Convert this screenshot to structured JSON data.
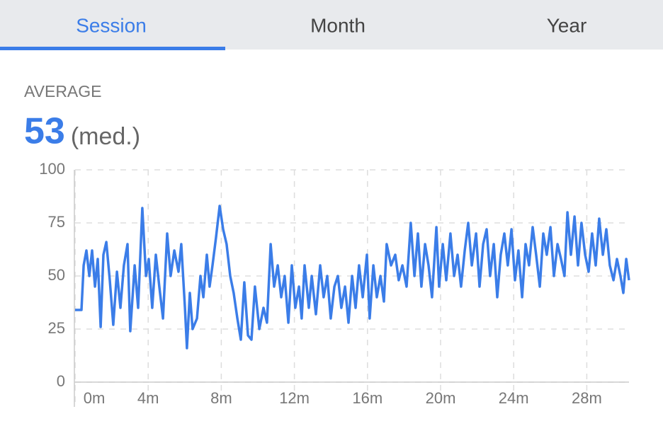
{
  "tabs": [
    "Session",
    "Month",
    "Year"
  ],
  "active_tab": 0,
  "summary": {
    "label": "AVERAGE",
    "value": "53",
    "unit": "(med.)"
  },
  "chart_data": {
    "type": "line",
    "x": [
      0,
      0.35,
      0.47,
      0.62,
      0.78,
      0.93,
      1.09,
      1.24,
      1.4,
      1.55,
      1.71,
      1.9,
      2.09,
      2.29,
      2.48,
      2.67,
      2.87,
      3.02,
      3.26,
      3.45,
      3.68,
      3.88,
      4.03,
      4.22,
      4.42,
      4.61,
      4.81,
      5.04,
      5.23,
      5.43,
      5.66,
      5.81,
      6.01,
      6.12,
      6.28,
      6.43,
      6.67,
      6.86,
      7.02,
      7.21,
      7.36,
      7.52,
      7.71,
      7.91,
      8.1,
      8.29,
      8.49,
      8.68,
      8.88,
      9.07,
      9.26,
      9.46,
      9.65,
      9.84,
      10.08,
      10.31,
      10.5,
      10.7,
      10.89,
      11.09,
      11.28,
      11.47,
      11.67,
      11.86,
      12.05,
      12.25,
      12.4,
      12.56,
      12.79,
      12.95,
      13.18,
      13.41,
      13.6,
      13.8,
      13.99,
      14.19,
      14.38,
      14.57,
      14.77,
      14.96,
      15.16,
      15.35,
      15.54,
      15.74,
      15.97,
      16.12,
      16.32,
      16.51,
      16.71,
      16.9,
      17.05,
      17.29,
      17.52,
      17.71,
      17.91,
      18.14,
      18.37,
      18.57,
      18.76,
      18.95,
      19.15,
      19.34,
      19.53,
      19.77,
      19.92,
      20.12,
      20.31,
      20.54,
      20.74,
      20.93,
      21.12,
      21.32,
      21.51,
      21.71,
      21.94,
      22.13,
      22.33,
      22.52,
      22.71,
      22.91,
      23.1,
      23.29,
      23.49,
      23.68,
      23.88,
      24.07,
      24.26,
      24.46,
      24.65,
      24.84,
      25.04,
      25.23,
      25.43,
      25.62,
      25.81,
      26.01,
      26.2,
      26.4,
      26.59,
      26.78,
      26.94,
      27.13,
      27.33,
      27.52,
      27.71,
      27.91,
      28.1,
      28.29,
      28.49,
      28.68,
      28.88,
      29.07,
      29.26,
      29.46,
      29.65,
      29.84,
      30,
      30.16,
      30.31
    ],
    "series": [
      {
        "name": "Session",
        "color": "#3b7de8",
        "values": [
          34,
          34,
          55,
          62,
          50,
          62,
          45,
          58,
          26,
          60,
          66,
          48,
          27,
          52,
          35,
          55,
          65,
          24,
          55,
          35,
          82,
          50,
          58,
          35,
          60,
          45,
          30,
          70,
          50,
          62,
          52,
          65,
          35,
          16,
          42,
          25,
          30,
          50,
          40,
          60,
          45,
          55,
          68,
          83,
          72,
          65,
          50,
          42,
          30,
          20,
          47,
          22,
          20,
          45,
          25,
          35,
          28,
          65,
          45,
          55,
          40,
          50,
          28,
          55,
          35,
          45,
          30,
          55,
          35,
          50,
          32,
          55,
          40,
          50,
          30,
          45,
          50,
          35,
          45,
          28,
          50,
          35,
          55,
          40,
          60,
          30,
          55,
          40,
          50,
          38,
          65,
          55,
          60,
          48,
          55,
          45,
          75,
          50,
          70,
          45,
          65,
          55,
          40,
          73,
          45,
          65,
          48,
          70,
          50,
          60,
          45,
          62,
          75,
          55,
          70,
          45,
          65,
          72,
          50,
          65,
          40,
          60,
          70,
          55,
          72,
          48,
          62,
          40,
          65,
          55,
          73,
          60,
          45,
          70,
          60,
          73,
          50,
          65,
          58,
          50,
          80,
          60,
          78,
          55,
          75,
          60,
          52,
          70,
          55,
          77,
          60,
          72,
          55,
          48,
          58,
          50,
          42,
          58,
          48
        ]
      }
    ],
    "xlim": [
      0,
      30.31
    ],
    "ylim": [
      0,
      100
    ],
    "xticks": [
      {
        "value": 0,
        "label": "0m"
      },
      {
        "value": 4,
        "label": "4m"
      },
      {
        "value": 8,
        "label": "8m"
      },
      {
        "value": 12,
        "label": "12m"
      },
      {
        "value": 16,
        "label": "16m"
      },
      {
        "value": 20,
        "label": "20m"
      },
      {
        "value": 24,
        "label": "24m"
      },
      {
        "value": 28,
        "label": "28m"
      }
    ],
    "yticks": [
      0,
      25,
      50,
      75,
      100
    ],
    "grid": true
  }
}
